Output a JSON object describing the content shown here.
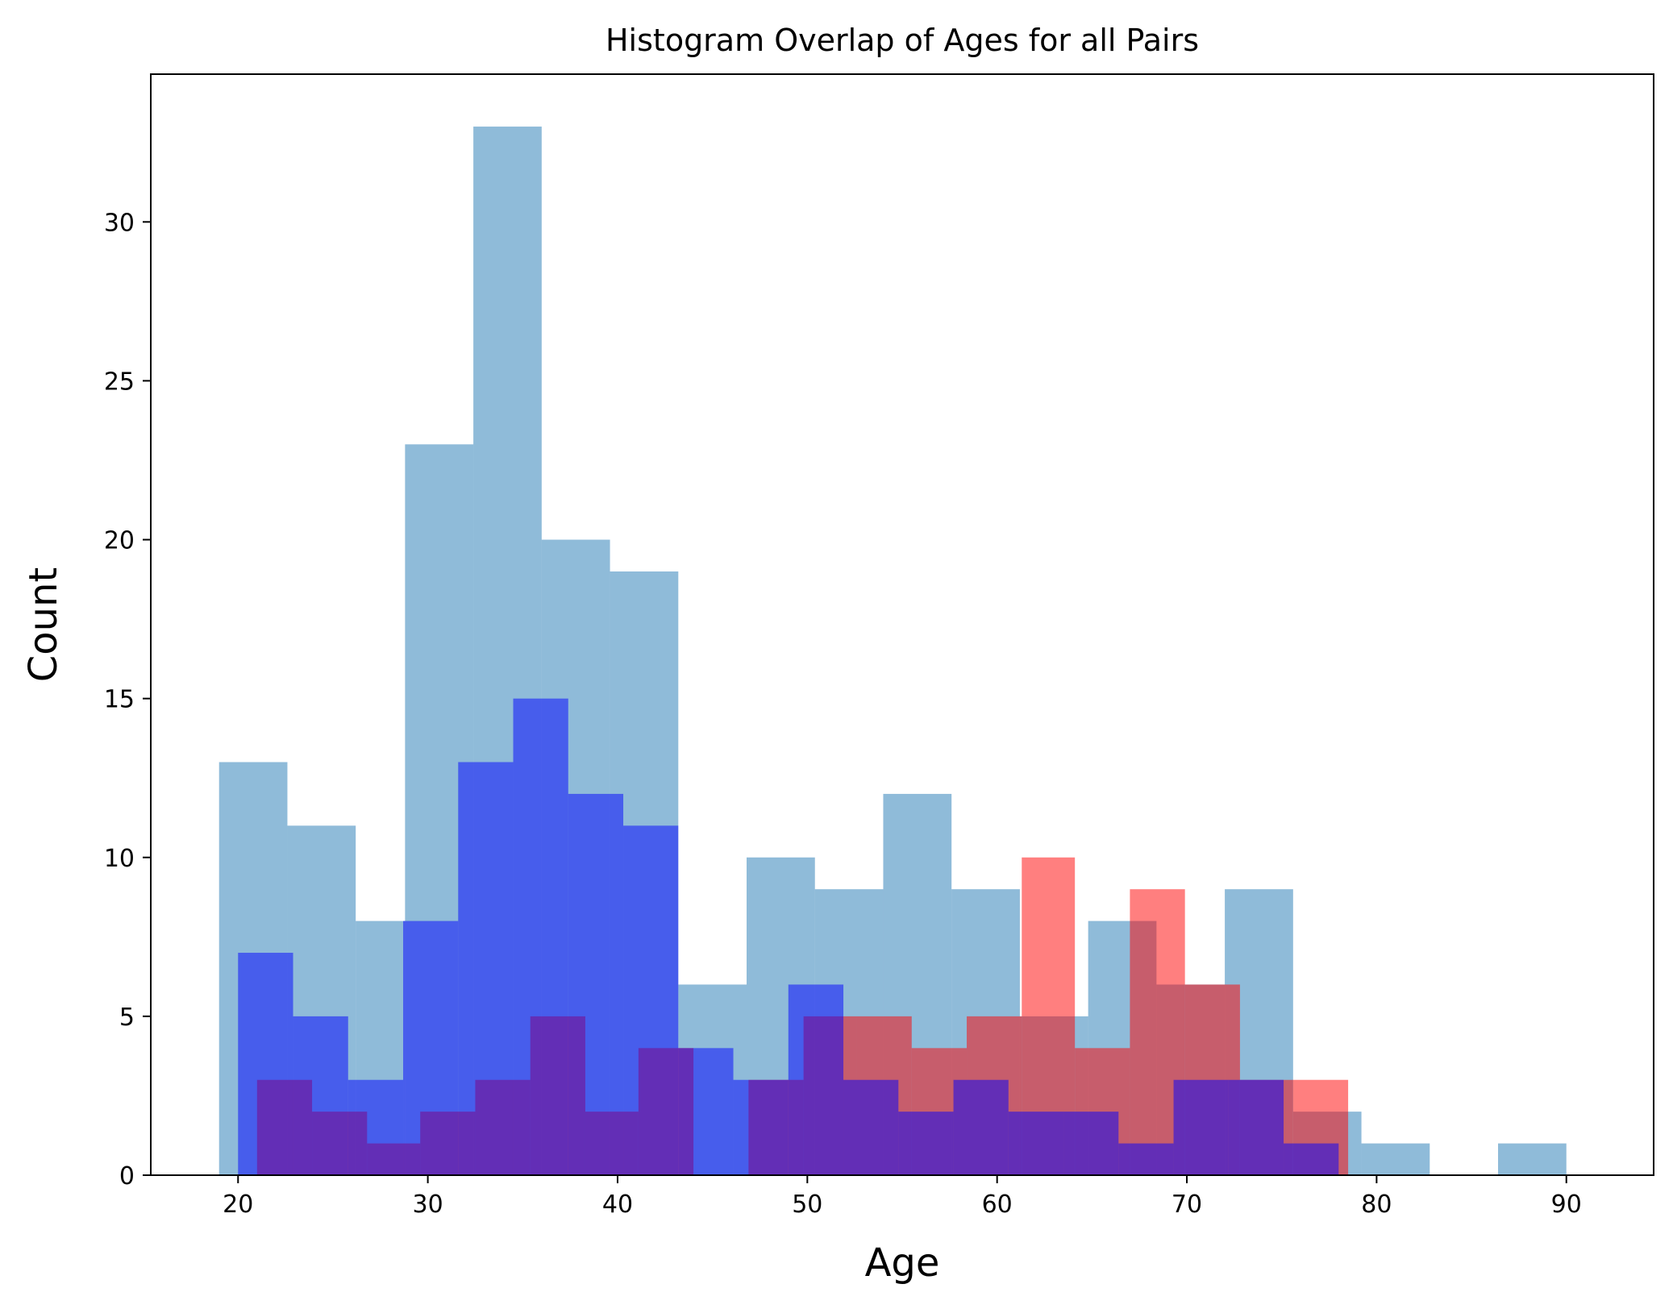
{
  "chart_data": {
    "type": "bar",
    "title": "Histogram Overlap of Ages for all Pairs",
    "xlabel": "Age",
    "ylabel": "Count",
    "xlim": [
      15.4,
      94.6
    ],
    "ylim": [
      0,
      34.65
    ],
    "xticks": [
      20,
      30,
      40,
      50,
      60,
      70,
      80,
      90
    ],
    "yticks": [
      0,
      5,
      10,
      15,
      20,
      25,
      30
    ],
    "grid": false,
    "legend": "none",
    "series": [
      {
        "color": "#1f77b4",
        "opacity": 0.5,
        "edges": [
          19,
          22.6,
          26.2,
          28.8,
          32.4,
          36,
          39.6,
          43.2,
          46.8,
          50.4,
          54,
          57.6,
          61.2,
          64.8,
          68.4,
          72,
          75.6,
          79.2,
          82.8,
          86.4,
          90
        ],
        "edges_note": "",
        "bins": [
          {
            "x0": 19.0,
            "x1": 22.6,
            "count": 13
          },
          {
            "x0": 22.6,
            "x1": 26.2,
            "count": 11
          },
          {
            "x0": 26.2,
            "x1": 28.8,
            "count": 8
          },
          {
            "x0": 28.8,
            "x1": 32.4,
            "count": 23
          },
          {
            "x0": 32.4,
            "x1": 36.0,
            "count": 33
          },
          {
            "x0": 36.0,
            "x1": 39.6,
            "count": 20
          },
          {
            "x0": 39.6,
            "x1": 43.2,
            "count": 19
          },
          {
            "x0": 43.2,
            "x1": 46.8,
            "count": 6
          },
          {
            "x0": 46.8,
            "x1": 50.4,
            "count": 10
          },
          {
            "x0": 50.4,
            "x1": 54.0,
            "count": 9
          },
          {
            "x0": 54.0,
            "x1": 57.6,
            "count": 12
          },
          {
            "x0": 57.6,
            "x1": 61.2,
            "count": 9
          },
          {
            "x0": 61.2,
            "x1": 64.8,
            "count": 5
          },
          {
            "x0": 64.8,
            "x1": 68.4,
            "count": 8
          },
          {
            "x0": 68.4,
            "x1": 72.0,
            "count": 6
          },
          {
            "x0": 72.0,
            "x1": 75.6,
            "count": 9
          },
          {
            "x0": 75.6,
            "x1": 79.2,
            "count": 2
          },
          {
            "x0": 79.2,
            "x1": 82.8,
            "count": 1
          },
          {
            "x0": 82.8,
            "x1": 86.4,
            "count": 0
          },
          {
            "x0": 86.4,
            "x1": 90.0,
            "count": 1
          }
        ]
      },
      {
        "color": "#ff0000",
        "opacity": 0.5,
        "bins": [
          {
            "x0": 21.0,
            "x1": 23.9,
            "count": 3
          },
          {
            "x0": 23.9,
            "x1": 26.8,
            "count": 2
          },
          {
            "x0": 26.8,
            "x1": 29.6,
            "count": 1
          },
          {
            "x0": 29.6,
            "x1": 32.5,
            "count": 2
          },
          {
            "x0": 32.5,
            "x1": 35.4,
            "count": 3
          },
          {
            "x0": 35.4,
            "x1": 38.3,
            "count": 5
          },
          {
            "x0": 38.3,
            "x1": 41.1,
            "count": 2
          },
          {
            "x0": 41.1,
            "x1": 44.0,
            "count": 4
          },
          {
            "x0": 44.0,
            "x1": 46.9,
            "count": 0
          },
          {
            "x0": 46.9,
            "x1": 49.8,
            "count": 3
          },
          {
            "x0": 49.8,
            "x1": 52.6,
            "count": 5
          },
          {
            "x0": 52.6,
            "x1": 55.5,
            "count": 5
          },
          {
            "x0": 55.5,
            "x1": 58.4,
            "count": 4
          },
          {
            "x0": 58.4,
            "x1": 61.3,
            "count": 5
          },
          {
            "x0": 61.3,
            "x1": 64.1,
            "count": 10
          },
          {
            "x0": 64.1,
            "x1": 67.0,
            "count": 4
          },
          {
            "x0": 67.0,
            "x1": 69.9,
            "count": 9
          },
          {
            "x0": 69.9,
            "x1": 72.8,
            "count": 6
          },
          {
            "x0": 72.8,
            "x1": 75.6,
            "count": 3
          },
          {
            "x0": 75.6,
            "x1": 78.5,
            "count": 3
          }
        ]
      },
      {
        "color": "#0000ff",
        "opacity": 0.5,
        "bins": [
          {
            "x0": 20.0,
            "x1": 22.9,
            "count": 7
          },
          {
            "x0": 22.9,
            "x1": 25.8,
            "count": 5
          },
          {
            "x0": 25.8,
            "x1": 28.7,
            "count": 3
          },
          {
            "x0": 28.7,
            "x1": 31.6,
            "count": 8
          },
          {
            "x0": 31.6,
            "x1": 34.5,
            "count": 13
          },
          {
            "x0": 34.5,
            "x1": 37.4,
            "count": 15
          },
          {
            "x0": 37.4,
            "x1": 40.3,
            "count": 12
          },
          {
            "x0": 40.3,
            "x1": 43.2,
            "count": 11
          },
          {
            "x0": 43.2,
            "x1": 46.1,
            "count": 4
          },
          {
            "x0": 46.1,
            "x1": 49.0,
            "count": 3
          },
          {
            "x0": 49.0,
            "x1": 51.9,
            "count": 6
          },
          {
            "x0": 51.9,
            "x1": 54.8,
            "count": 3
          },
          {
            "x0": 54.8,
            "x1": 57.7,
            "count": 2
          },
          {
            "x0": 57.7,
            "x1": 60.6,
            "count": 3
          },
          {
            "x0": 60.6,
            "x1": 63.5,
            "count": 2
          },
          {
            "x0": 63.5,
            "x1": 66.4,
            "count": 2
          },
          {
            "x0": 66.4,
            "x1": 69.3,
            "count": 1
          },
          {
            "x0": 69.3,
            "x1": 72.2,
            "count": 3
          },
          {
            "x0": 72.2,
            "x1": 75.1,
            "count": 3
          },
          {
            "x0": 75.1,
            "x1": 78.0,
            "count": 1
          }
        ]
      }
    ]
  }
}
